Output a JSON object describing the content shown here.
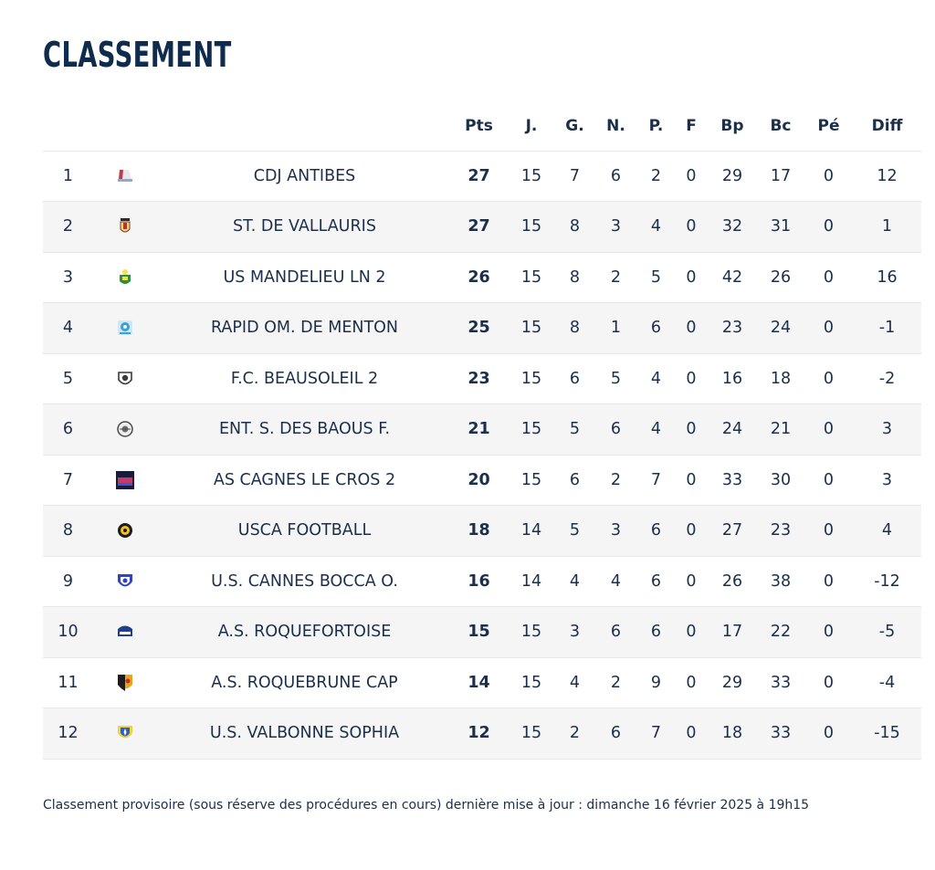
{
  "title": "CLASSEMENT",
  "headers": {
    "pts": "Pts",
    "j": "J.",
    "g": "G.",
    "n": "N.",
    "p": "P.",
    "f": "F",
    "bp": "Bp",
    "bc": "Bc",
    "pe": "Pé",
    "diff": "Diff"
  },
  "rows": [
    {
      "rank": "1",
      "logo": "cdj-antibes-logo-icon",
      "team": "CDJ ANTIBES",
      "pts": "27",
      "j": "15",
      "g": "7",
      "n": "6",
      "p": "2",
      "f": "0",
      "bp": "29",
      "bc": "17",
      "pe": "0",
      "diff": "12"
    },
    {
      "rank": "2",
      "logo": "vallauris-logo-icon",
      "team": "ST. DE VALLAURIS",
      "pts": "27",
      "j": "15",
      "g": "8",
      "n": "3",
      "p": "4",
      "f": "0",
      "bp": "32",
      "bc": "31",
      "pe": "0",
      "diff": "1"
    },
    {
      "rank": "3",
      "logo": "mandelieu-logo-icon",
      "team": "US MANDELIEU LN 2",
      "pts": "26",
      "j": "15",
      "g": "8",
      "n": "2",
      "p": "5",
      "f": "0",
      "bp": "42",
      "bc": "26",
      "pe": "0",
      "diff": "16"
    },
    {
      "rank": "4",
      "logo": "menton-logo-icon",
      "team": "RAPID OM. DE MENTON",
      "pts": "25",
      "j": "15",
      "g": "8",
      "n": "1",
      "p": "6",
      "f": "0",
      "bp": "23",
      "bc": "24",
      "pe": "0",
      "diff": "-1"
    },
    {
      "rank": "5",
      "logo": "beausoleil-logo-icon",
      "team": "F.C. BEAUSOLEIL 2",
      "pts": "23",
      "j": "15",
      "g": "6",
      "n": "5",
      "p": "4",
      "f": "0",
      "bp": "16",
      "bc": "18",
      "pe": "0",
      "diff": "-2"
    },
    {
      "rank": "6",
      "logo": "baous-logo-icon",
      "team": "ENT. S. DES BAOUS F.",
      "pts": "21",
      "j": "15",
      "g": "5",
      "n": "6",
      "p": "4",
      "f": "0",
      "bp": "24",
      "bc": "21",
      "pe": "0",
      "diff": "3"
    },
    {
      "rank": "7",
      "logo": "cagnes-logo-icon",
      "team": "AS CAGNES LE CROS 2",
      "pts": "20",
      "j": "15",
      "g": "6",
      "n": "2",
      "p": "7",
      "f": "0",
      "bp": "33",
      "bc": "30",
      "pe": "0",
      "diff": "3"
    },
    {
      "rank": "8",
      "logo": "usca-logo-icon",
      "team": "USCA FOOTBALL",
      "pts": "18",
      "j": "14",
      "g": "5",
      "n": "3",
      "p": "6",
      "f": "0",
      "bp": "27",
      "bc": "23",
      "pe": "0",
      "diff": "4"
    },
    {
      "rank": "9",
      "logo": "cannes-bocca-logo-icon",
      "team": "U.S. CANNES BOCCA O.",
      "pts": "16",
      "j": "14",
      "g": "4",
      "n": "4",
      "p": "6",
      "f": "0",
      "bp": "26",
      "bc": "38",
      "pe": "0",
      "diff": "-12"
    },
    {
      "rank": "10",
      "logo": "roquefortoise-logo-icon",
      "team": "A.S. ROQUEFORTOISE",
      "pts": "15",
      "j": "15",
      "g": "3",
      "n": "6",
      "p": "6",
      "f": "0",
      "bp": "17",
      "bc": "22",
      "pe": "0",
      "diff": "-5"
    },
    {
      "rank": "11",
      "logo": "roquebrune-logo-icon",
      "team": "A.S. ROQUEBRUNE CAP",
      "pts": "14",
      "j": "15",
      "g": "4",
      "n": "2",
      "p": "9",
      "f": "0",
      "bp": "29",
      "bc": "33",
      "pe": "0",
      "diff": "-4"
    },
    {
      "rank": "12",
      "logo": "valbonne-logo-icon",
      "team": "U.S. VALBONNE SOPHIA",
      "pts": "12",
      "j": "15",
      "g": "2",
      "n": "6",
      "p": "7",
      "f": "0",
      "bp": "18",
      "bc": "33",
      "pe": "0",
      "diff": "-15"
    }
  ],
  "footer": "Classement provisoire (sous réserve des procédures en cours) dernière mise à jour : dimanche 16 février 2025 à 19h15",
  "colors": {
    "text": "#1b2f4a",
    "title": "#0f2b4d",
    "stripe": "#f5f5f5",
    "divider": "#e7e7e7"
  }
}
